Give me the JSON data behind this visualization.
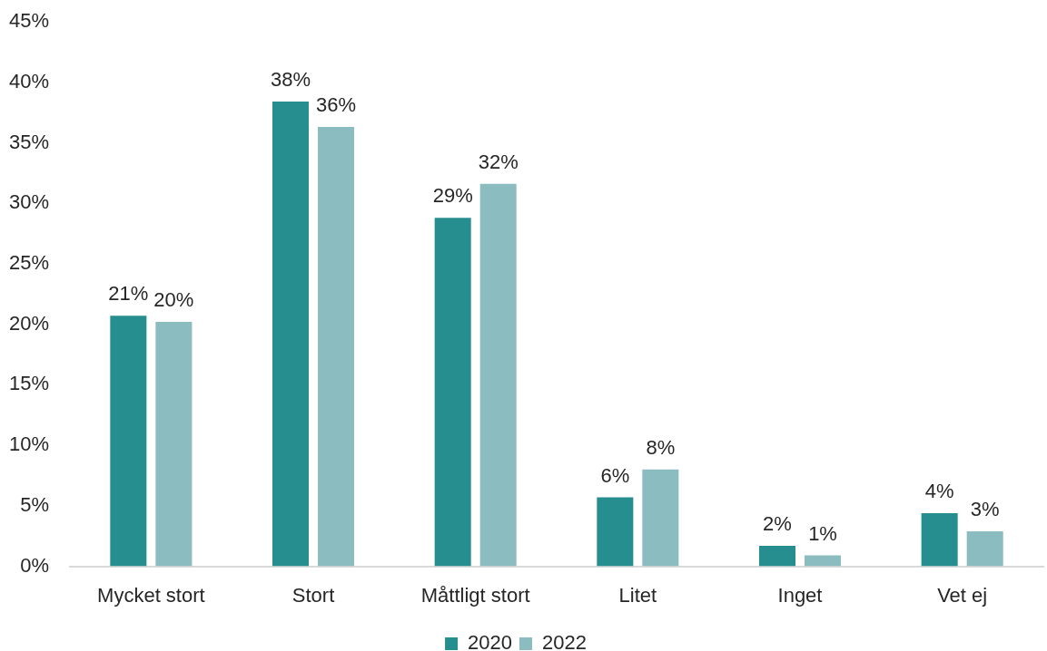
{
  "chart_data": {
    "type": "bar",
    "categories": [
      "Mycket stort",
      "Stort",
      "Måttligt stort",
      "Litet",
      "Inget",
      "Vet ej"
    ],
    "series": [
      {
        "name": "2020",
        "color": "#268e8e",
        "values": [
          20.7,
          38.4,
          28.8,
          5.7,
          1.7,
          4.4
        ],
        "value_labels": [
          "21%",
          "38%",
          "29%",
          "6%",
          "2%",
          "4%"
        ]
      },
      {
        "name": "2022",
        "color": "#8bbcbf",
        "values": [
          20.2,
          36.3,
          31.6,
          8.0,
          0.9,
          2.9
        ],
        "value_labels": [
          "20%",
          "36%",
          "32%",
          "8%",
          "1%",
          "3%"
        ]
      }
    ],
    "ylim": [
      0,
      45
    ],
    "yticks": [
      {
        "value": 0,
        "label": "0%"
      },
      {
        "value": 5,
        "label": "5%"
      },
      {
        "value": 10,
        "label": "10%"
      },
      {
        "value": 15,
        "label": "15%"
      },
      {
        "value": 20,
        "label": "20%"
      },
      {
        "value": 25,
        "label": "25%"
      },
      {
        "value": 30,
        "label": "30%"
      },
      {
        "value": 35,
        "label": "35%"
      },
      {
        "value": 40,
        "label": "40%"
      },
      {
        "value": 45,
        "label": "45%"
      }
    ],
    "grid": false,
    "legend": "bottom"
  }
}
